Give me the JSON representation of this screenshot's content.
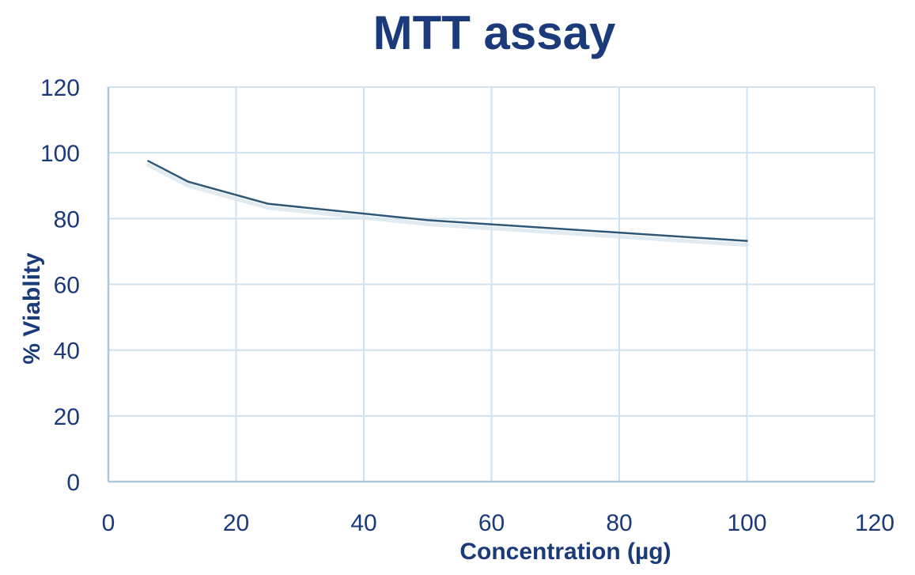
{
  "chart_data": {
    "type": "line",
    "title": "MTT assay",
    "xlabel": "Concentration (µg)",
    "ylabel": "% Viablity",
    "xlim": [
      0,
      120
    ],
    "ylim": [
      0,
      120
    ],
    "xticks": [
      0,
      20,
      40,
      60,
      80,
      100,
      120
    ],
    "yticks": [
      0,
      20,
      40,
      60,
      80,
      100,
      120
    ],
    "grid": true,
    "series": [
      {
        "x": [
          6.25,
          12.5,
          25,
          50,
          100
        ],
        "y": [
          97.5,
          91.2,
          84.5,
          79.5,
          73.2
        ]
      }
    ],
    "colors": {
      "text": "#1b3a7a",
      "line": "#2f5878",
      "grid": "#cfe2ee",
      "axis": "#a9c8db"
    }
  }
}
